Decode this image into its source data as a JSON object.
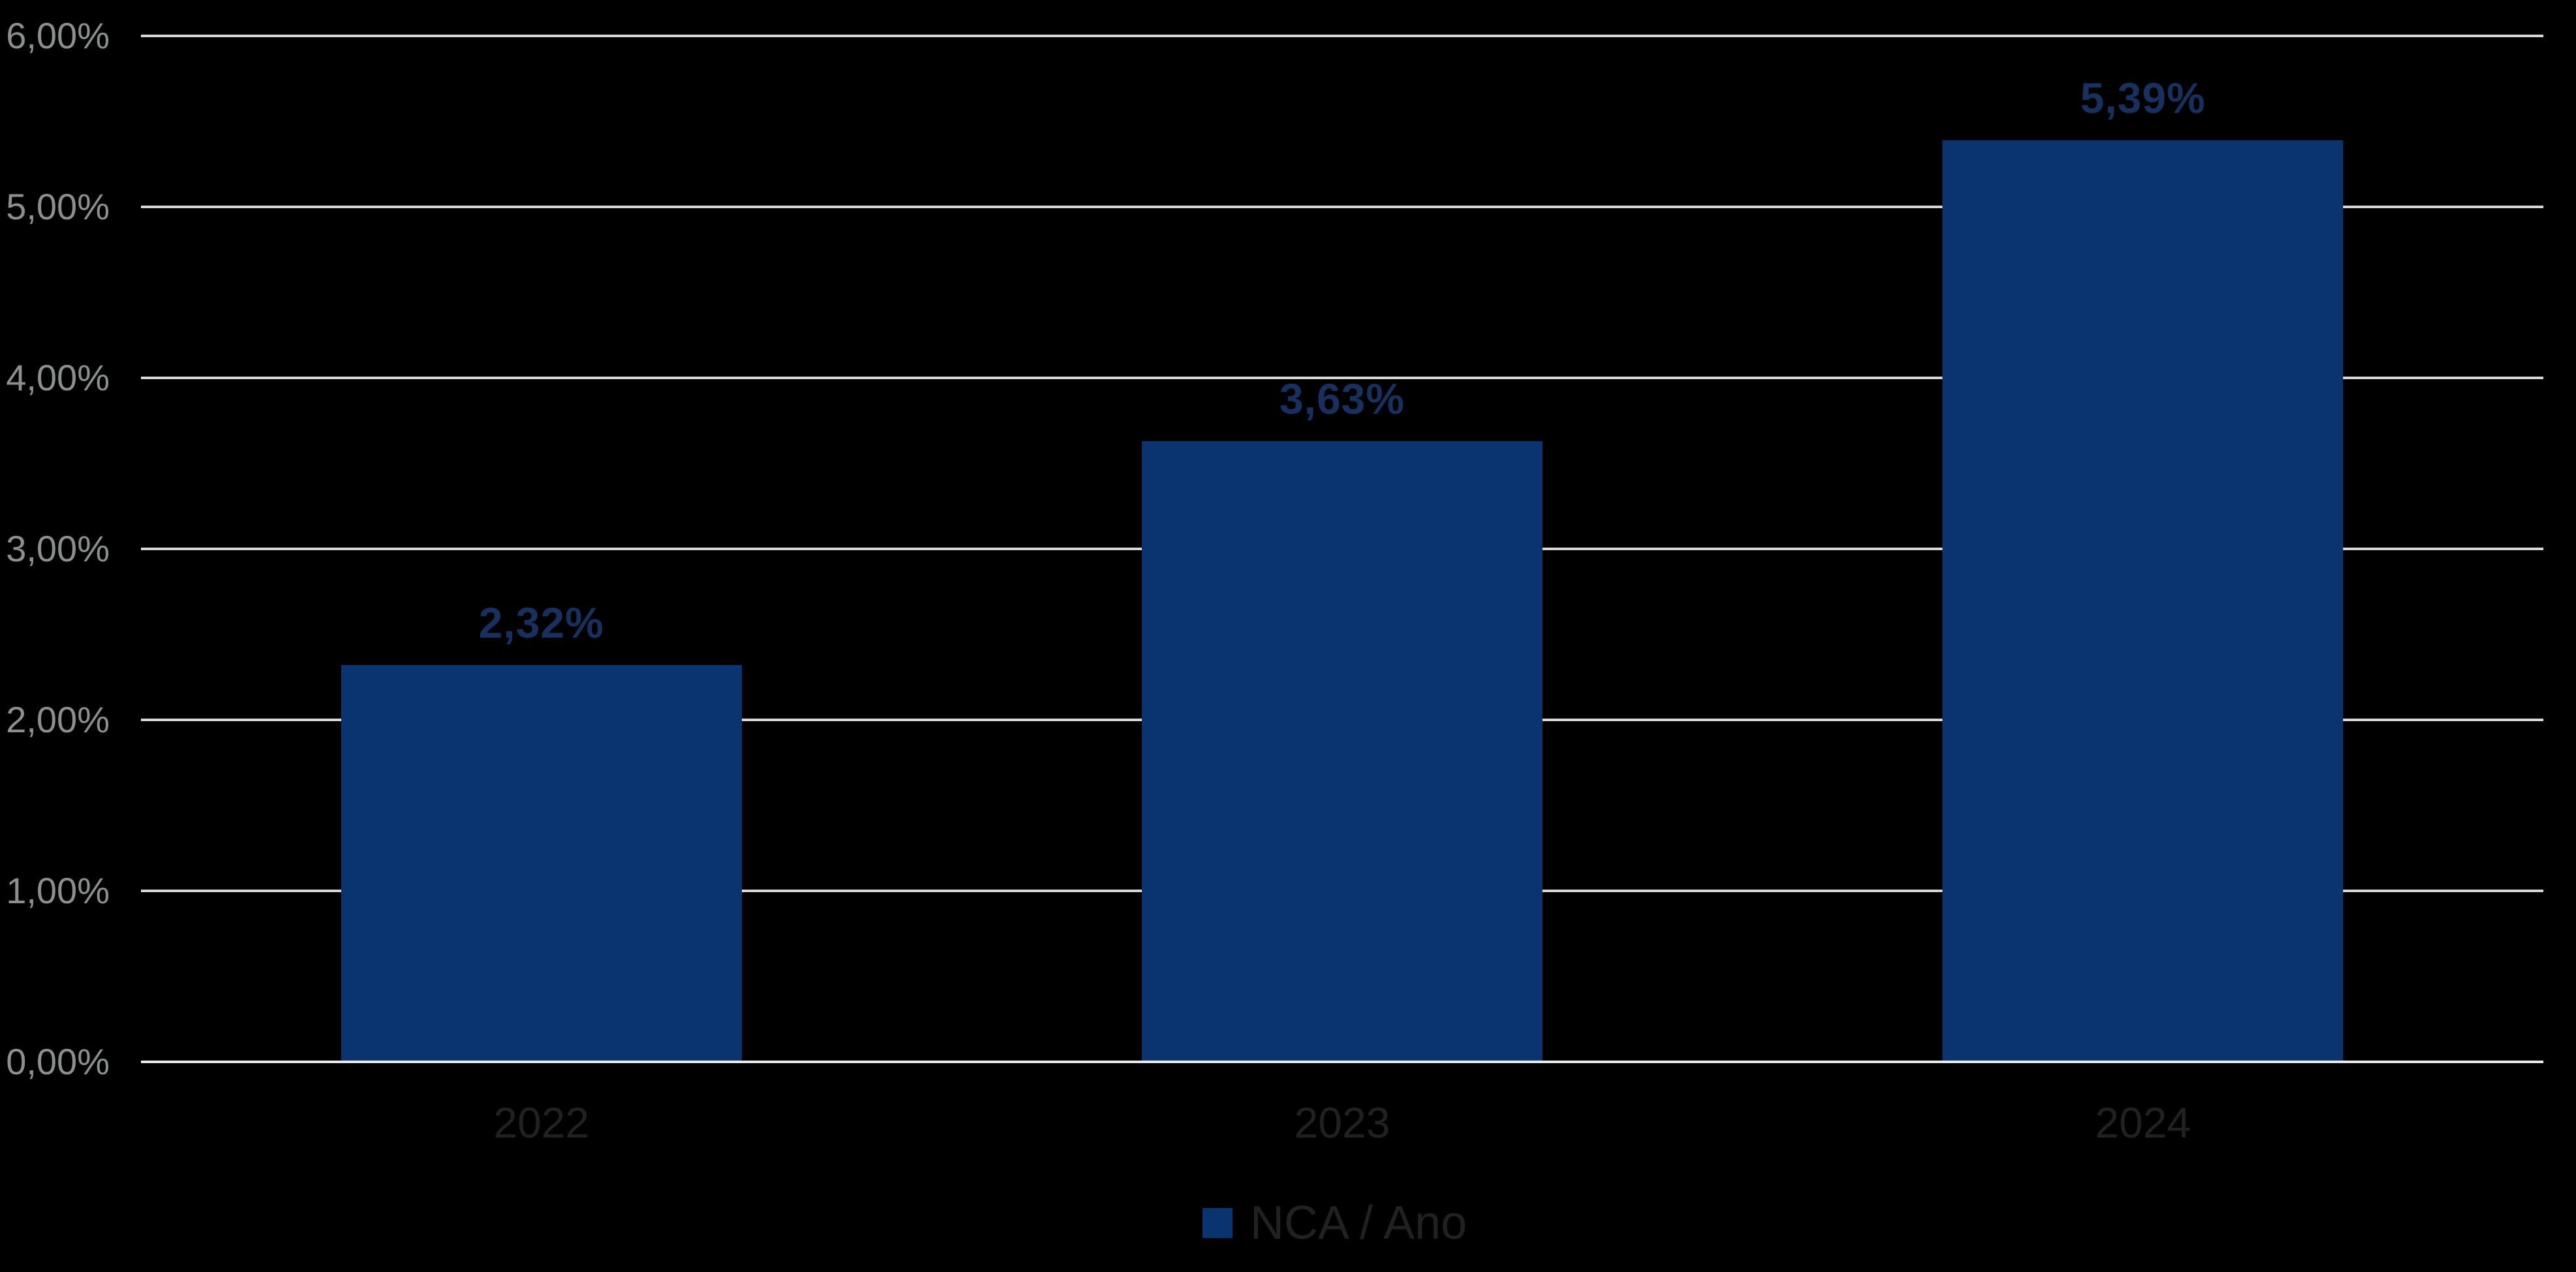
{
  "chart_data": {
    "type": "bar",
    "title": "",
    "categories": [
      "2022",
      "2023",
      "2024"
    ],
    "series": [
      {
        "name": "NCA / Ano",
        "values": [
          2.32,
          3.63,
          5.39
        ]
      }
    ],
    "value_labels": [
      "2,32%",
      "3,63%",
      "5,39%"
    ],
    "y_ticks_top_to_bottom": [
      "6,00%",
      "5,00%",
      "4,00%",
      "3,00%",
      "2,00%",
      "1,00%",
      "0,00%"
    ],
    "ylim": [
      0,
      6
    ],
    "xlabel": "",
    "ylabel": "",
    "grid": true,
    "legend_position": "bottom-center",
    "number_format": "percent-comma-decimal"
  },
  "legend": {
    "label": "NCA / Ano"
  },
  "colors": {
    "background": "#000000",
    "bar": "#093470",
    "data_label": "#19305F",
    "tick_label": "#8B908F",
    "category_label": "#212121",
    "legend_text": "#212121",
    "gridline": "#D7D7D7",
    "axis_line": "#E8E8E8"
  }
}
